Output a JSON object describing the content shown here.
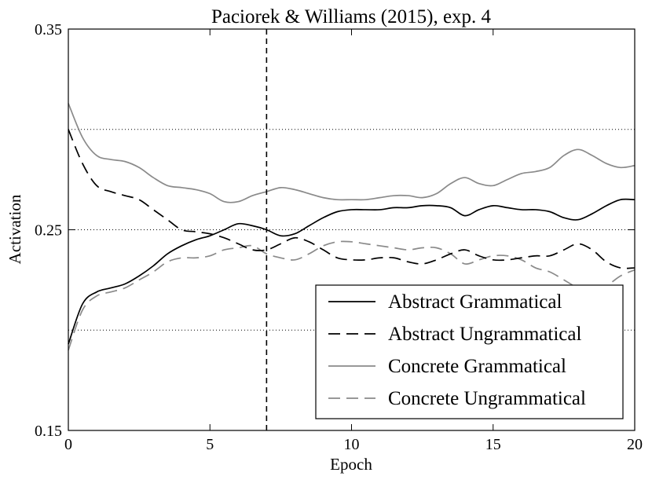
{
  "chart_data": {
    "type": "line",
    "title": "Paciorek & Williams (2015), exp. 4",
    "xlabel": "Epoch",
    "ylabel": "Activation",
    "xlim": [
      0,
      20
    ],
    "ylim": [
      0.15,
      0.35
    ],
    "xticks": [
      0,
      5,
      10,
      15,
      20
    ],
    "xtick_labels": [
      "0",
      "5",
      "10",
      "15",
      "20"
    ],
    "yticks": [
      0.15,
      0.25,
      0.35
    ],
    "ytick_labels": [
      "0.15",
      "0.25",
      "0.35"
    ],
    "grid": "horizontal dotted at 0.20, 0.25, 0.30",
    "grid_y": [
      0.2,
      0.25,
      0.3
    ],
    "reference_line_x": 7,
    "legend_position": "bottom-right",
    "x": [
      0,
      0.5,
      1,
      1.5,
      2,
      2.5,
      3,
      3.5,
      4,
      4.5,
      5,
      5.5,
      6,
      6.5,
      7,
      7.5,
      8,
      8.5,
      9,
      9.5,
      10,
      10.5,
      11,
      11.5,
      12,
      12.5,
      13,
      13.5,
      14,
      14.5,
      15,
      15.5,
      16,
      16.5,
      17,
      17.5,
      18,
      18.5,
      19,
      19.5,
      20
    ],
    "series": [
      {
        "name": "Abstract Grammatical",
        "color": "#000000",
        "dash": "solid",
        "values": [
          0.193,
          0.213,
          0.219,
          0.221,
          0.223,
          0.227,
          0.232,
          0.238,
          0.242,
          0.245,
          0.247,
          0.25,
          0.253,
          0.252,
          0.25,
          0.247,
          0.248,
          0.252,
          0.256,
          0.259,
          0.26,
          0.26,
          0.26,
          0.261,
          0.261,
          0.262,
          0.262,
          0.261,
          0.257,
          0.26,
          0.262,
          0.261,
          0.26,
          0.26,
          0.259,
          0.256,
          0.255,
          0.258,
          0.262,
          0.265,
          0.265
        ]
      },
      {
        "name": "Abstract Ungrammatical",
        "color": "#000000",
        "dash": "dashed",
        "values": [
          0.3,
          0.283,
          0.272,
          0.269,
          0.267,
          0.265,
          0.26,
          0.255,
          0.25,
          0.249,
          0.248,
          0.246,
          0.243,
          0.24,
          0.24,
          0.243,
          0.246,
          0.244,
          0.24,
          0.236,
          0.235,
          0.235,
          0.236,
          0.236,
          0.234,
          0.233,
          0.235,
          0.238,
          0.24,
          0.237,
          0.235,
          0.235,
          0.236,
          0.237,
          0.237,
          0.24,
          0.243,
          0.24,
          0.234,
          0.231,
          0.231
        ]
      },
      {
        "name": "Concrete Grammatical",
        "color": "#8a8a8a",
        "dash": "solid",
        "values": [
          0.313,
          0.296,
          0.287,
          0.285,
          0.284,
          0.281,
          0.276,
          0.272,
          0.271,
          0.27,
          0.268,
          0.264,
          0.264,
          0.267,
          0.269,
          0.271,
          0.27,
          0.268,
          0.266,
          0.265,
          0.265,
          0.265,
          0.266,
          0.267,
          0.267,
          0.266,
          0.268,
          0.273,
          0.276,
          0.273,
          0.272,
          0.275,
          0.278,
          0.279,
          0.281,
          0.287,
          0.29,
          0.287,
          0.283,
          0.281,
          0.282
        ]
      },
      {
        "name": "Concrete Ungrammatical",
        "color": "#8a8a8a",
        "dash": "dashed",
        "values": [
          0.19,
          0.21,
          0.217,
          0.219,
          0.221,
          0.225,
          0.229,
          0.234,
          0.236,
          0.236,
          0.237,
          0.24,
          0.241,
          0.242,
          0.238,
          0.236,
          0.235,
          0.238,
          0.242,
          0.244,
          0.244,
          0.243,
          0.242,
          0.241,
          0.24,
          0.241,
          0.241,
          0.238,
          0.233,
          0.235,
          0.237,
          0.237,
          0.235,
          0.231,
          0.229,
          0.225,
          0.221,
          0.219,
          0.222,
          0.227,
          0.23
        ]
      }
    ]
  }
}
